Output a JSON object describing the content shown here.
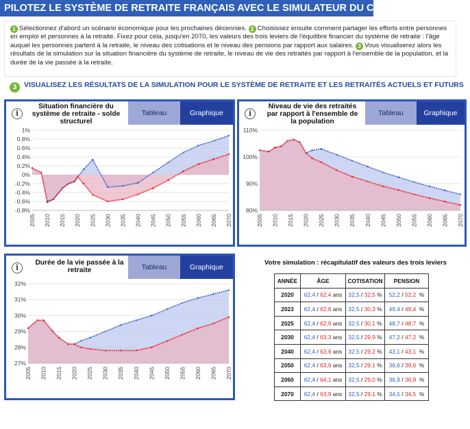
{
  "header": {
    "title": "PILOTEZ LE SYSTÈME DE RETRAITE FRANÇAIS AVEC LE SIMULATEUR DU COR"
  },
  "intro": {
    "step1_num": "1",
    "step1_text": "Sélectionnez d'abord un scénario économique pour les prochaines décennies.",
    "step2_num": "2",
    "step2_text": "Choisissez ensuite comment partager les efforts entre personnes en emploi et personnes à la retraite. Fixez pour cela, jusqu'en 2070, les valeurs des trois leviers de l'équilibre financier du système de retraite : l'âge auquel les personnes partent à la retraite, le niveau des cotisations et le niveau des pensions par rapport aux salaires.",
    "step3_num": "3",
    "step3_text": "Vous visualiserez alors les résultats de la simulation sur la situation financière du système de retraite, le niveau de vie des retraités par rapport à l'ensemble de la population, et la durée de la vie passée à la retraite."
  },
  "step3": {
    "num": "3",
    "label": "VISUALISEZ LES RÉSULTATS DE LA SIMULATION POUR LE SYSTÈME DE RETRAITE ET LES RETRAITÉS ACTUELS ET FUTURS"
  },
  "tabs": {
    "table": "Tableau",
    "chart": "Graphique"
  },
  "colors": {
    "blue_line": "#2f55c8",
    "red_line": "#e8202a",
    "blue_fill": "#bcc8ef",
    "red_fill": "#e9b6c4",
    "panel_border": "#2c57b8"
  },
  "icons": {
    "info": "i"
  },
  "panels": {
    "solde": {
      "title": "Situation financière du système de retraite - solde structurel"
    },
    "niveau": {
      "title": "Niveau de vie des retraités par rapport à l'ensemble de la population"
    },
    "duree": {
      "title": "Durée de la vie passée à la retraite"
    }
  },
  "chart_data": [
    {
      "type": "line",
      "title": "Situation financière du système de retraite - solde structurel",
      "x": [
        2005,
        2008,
        2010,
        2012,
        2015,
        2017,
        2019,
        2020,
        2022,
        2025,
        2030,
        2035,
        2040,
        2045,
        2050,
        2055,
        2060,
        2065,
        2070
      ],
      "series": [
        {
          "color": "blue",
          "values": [
            0.15,
            0.05,
            -0.6,
            -0.55,
            -0.3,
            -0.2,
            -0.15,
            -0.05,
            0.12,
            0.34,
            -0.28,
            -0.25,
            -0.18,
            0.05,
            0.28,
            0.5,
            0.66,
            0.76,
            0.88
          ]
        },
        {
          "color": "red",
          "values": [
            0.15,
            0.05,
            -0.62,
            -0.55,
            -0.3,
            -0.2,
            -0.15,
            -0.05,
            -0.2,
            -0.45,
            -0.6,
            -0.55,
            -0.44,
            -0.3,
            -0.12,
            0.08,
            0.24,
            0.35,
            0.46
          ]
        }
      ],
      "y_ticks": [
        "1%",
        "0.8%",
        "0.6%",
        "0.4%",
        "0.2%",
        "0%",
        "-0.2%",
        "-0.4%",
        "-0.6%",
        "-0.8%"
      ],
      "x_ticks": [
        "2005",
        "2010",
        "2015",
        "2020",
        "2025",
        "2030",
        "2035",
        "2040",
        "2045",
        "2050",
        "2055",
        "2060",
        "2065",
        "2070"
      ],
      "ylim": [
        -0.8,
        1.0
      ]
    },
    {
      "type": "line",
      "title": "Niveau de vie des retraités par rapport à l'ensemble de la population",
      "x": [
        2005,
        2008,
        2010,
        2012,
        2014,
        2016,
        2018,
        2020,
        2022,
        2025,
        2030,
        2035,
        2040,
        2045,
        2050,
        2055,
        2060,
        2065,
        2070
      ],
      "series": [
        {
          "color": "blue",
          "values": [
            102.5,
            102.0,
            103.5,
            104.0,
            106.0,
            106.5,
            105.5,
            101.5,
            102.5,
            103.0,
            100.8,
            98.6,
            96.4,
            94.2,
            92.4,
            90.6,
            89.0,
            87.5,
            86.0
          ]
        },
        {
          "color": "red",
          "values": [
            102.5,
            102.0,
            103.5,
            104.0,
            106.0,
            106.5,
            105.5,
            101.5,
            99.5,
            98.0,
            95.0,
            92.6,
            90.8,
            89.0,
            87.6,
            86.0,
            84.6,
            83.3,
            82.0
          ]
        }
      ],
      "y_ticks": [
        "110%",
        "100%",
        "90%",
        "80%"
      ],
      "x_ticks": [
        "2005",
        "2010",
        "2015",
        "2020",
        "2025",
        "2030",
        "2035",
        "2040",
        "2045",
        "2050",
        "2055",
        "2060",
        "2065",
        "2070"
      ],
      "ylim": [
        80,
        110
      ]
    },
    {
      "type": "line",
      "title": "Durée de la vie passée à la retraite",
      "x": [
        2005,
        2008,
        2010,
        2013,
        2015,
        2018,
        2020,
        2022,
        2025,
        2030,
        2035,
        2040,
        2045,
        2050,
        2055,
        2060,
        2065,
        2070
      ],
      "series": [
        {
          "color": "blue",
          "values": [
            29.2,
            29.7,
            29.7,
            29.0,
            28.6,
            28.2,
            28.2,
            28.4,
            28.6,
            29.0,
            29.4,
            29.7,
            30.0,
            30.4,
            30.8,
            31.1,
            31.35,
            31.6
          ]
        },
        {
          "color": "red",
          "values": [
            29.2,
            29.7,
            29.7,
            29.0,
            28.6,
            28.2,
            28.2,
            28.0,
            27.9,
            27.8,
            27.8,
            27.8,
            28.0,
            28.4,
            28.8,
            29.2,
            29.5,
            29.9
          ]
        }
      ],
      "y_ticks": [
        "32%",
        "31%",
        "30%",
        "29%",
        "28%",
        "27%"
      ],
      "x_ticks": [
        "2005",
        "2010",
        "2015",
        "2020",
        "2025",
        "2030",
        "2035",
        "2040",
        "2045",
        "2050",
        "2055",
        "2060",
        "2065",
        "2070"
      ],
      "ylim": [
        27,
        32
      ]
    }
  ],
  "recap": {
    "title": "Votre simulation : récapitulatif des valeurs des trois leviers",
    "headers": [
      "ANNÉE",
      "ÂGE",
      "COTISATION",
      "PENSION"
    ],
    "rows": [
      {
        "year": "2020",
        "age_b": "62,4",
        "age_r": "62,4",
        "age_u": "ans",
        "cot_b": "32,5",
        "cot_r": "32,5",
        "cot_u": "%",
        "pen_b": "52,2",
        "pen_r": "52,2",
        "pen_u": "%"
      },
      {
        "year": "2023",
        "age_b": "62,4",
        "age_r": "62,8",
        "age_u": "ans",
        "cot_b": "32,5",
        "cot_r": "30,3",
        "cot_u": "%",
        "pen_b": "49,4",
        "pen_r": "49,4",
        "pen_u": "%"
      },
      {
        "year": "2025",
        "age_b": "62,4",
        "age_r": "62,9",
        "age_u": "ans",
        "cot_b": "32,5",
        "cot_r": "30,1",
        "cot_u": "%",
        "pen_b": "48,7",
        "pen_r": "48,7",
        "pen_u": "%"
      },
      {
        "year": "2030",
        "age_b": "62,4",
        "age_r": "63,3",
        "age_u": "ans",
        "cot_b": "32,5",
        "cot_r": "29,9",
        "cot_u": "%",
        "pen_b": "47,2",
        "pen_r": "47,2",
        "pen_u": "%"
      },
      {
        "year": "2040",
        "age_b": "62,4",
        "age_r": "63,9",
        "age_u": "ans",
        "cot_b": "32,5",
        "cot_r": "29,2",
        "cot_u": "%",
        "pen_b": "43,1",
        "pen_r": "43,1",
        "pen_u": "%"
      },
      {
        "year": "2050",
        "age_b": "62,4",
        "age_r": "63,9",
        "age_u": "ans",
        "cot_b": "32,5",
        "cot_r": "29,1",
        "cot_u": "%",
        "pen_b": "39,6",
        "pen_r": "39,6",
        "pen_u": "%"
      },
      {
        "year": "2060",
        "age_b": "62,4",
        "age_r": "64,1",
        "age_u": "ans",
        "cot_b": "32,5",
        "cot_r": "29,0",
        "cot_u": "%",
        "pen_b": "36,9",
        "pen_r": "36,9",
        "pen_u": "%"
      },
      {
        "year": "2070",
        "age_b": "62,4",
        "age_r": "63,9",
        "age_u": "ans",
        "cot_b": "32,5",
        "cot_r": "29,1",
        "cot_u": "%",
        "pen_b": "34,5",
        "pen_r": "34,5",
        "pen_u": "%"
      }
    ]
  }
}
